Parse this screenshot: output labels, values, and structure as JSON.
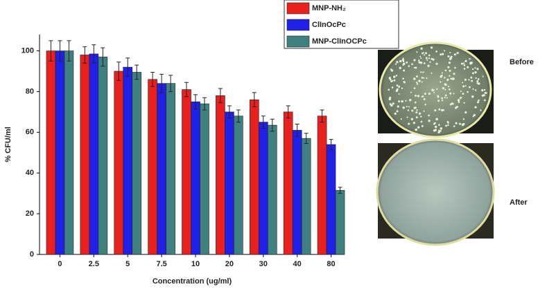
{
  "chart_data": {
    "type": "bar",
    "categories": [
      "0",
      "2.5",
      "5",
      "7.5",
      "10",
      "20",
      "30",
      "40",
      "80"
    ],
    "series": [
      {
        "name": "MNP-NH₂",
        "color": "#e8201e",
        "values": [
          100,
          98,
          90,
          86,
          81,
          78,
          76,
          70,
          68
        ],
        "errors": [
          5,
          4,
          4.5,
          3.5,
          3.5,
          3.5,
          3.5,
          3,
          3
        ]
      },
      {
        "name": "ClInOcPc",
        "color": "#2020e8",
        "values": [
          100,
          98.5,
          92,
          84,
          75,
          70,
          65,
          61,
          54
        ],
        "errors": [
          5,
          4.5,
          4.5,
          4.5,
          3.5,
          3,
          3,
          3,
          2.5
        ]
      },
      {
        "name": "MNP-ClInOCPc",
        "color": "#3f8080",
        "values": [
          100,
          97,
          89.5,
          84,
          74,
          68,
          63.5,
          57,
          31.5
        ],
        "errors": [
          5,
          4.5,
          3.5,
          4,
          3,
          3,
          3,
          2.5,
          1.5
        ]
      }
    ],
    "ylim": [
      0,
      108
    ],
    "yticks": [
      0,
      20,
      40,
      60,
      80,
      100
    ],
    "ylabel": "% CFU/ml",
    "xlabel": "Concentration (ug/ml)",
    "annotations": [
      "Before",
      "After"
    ]
  }
}
